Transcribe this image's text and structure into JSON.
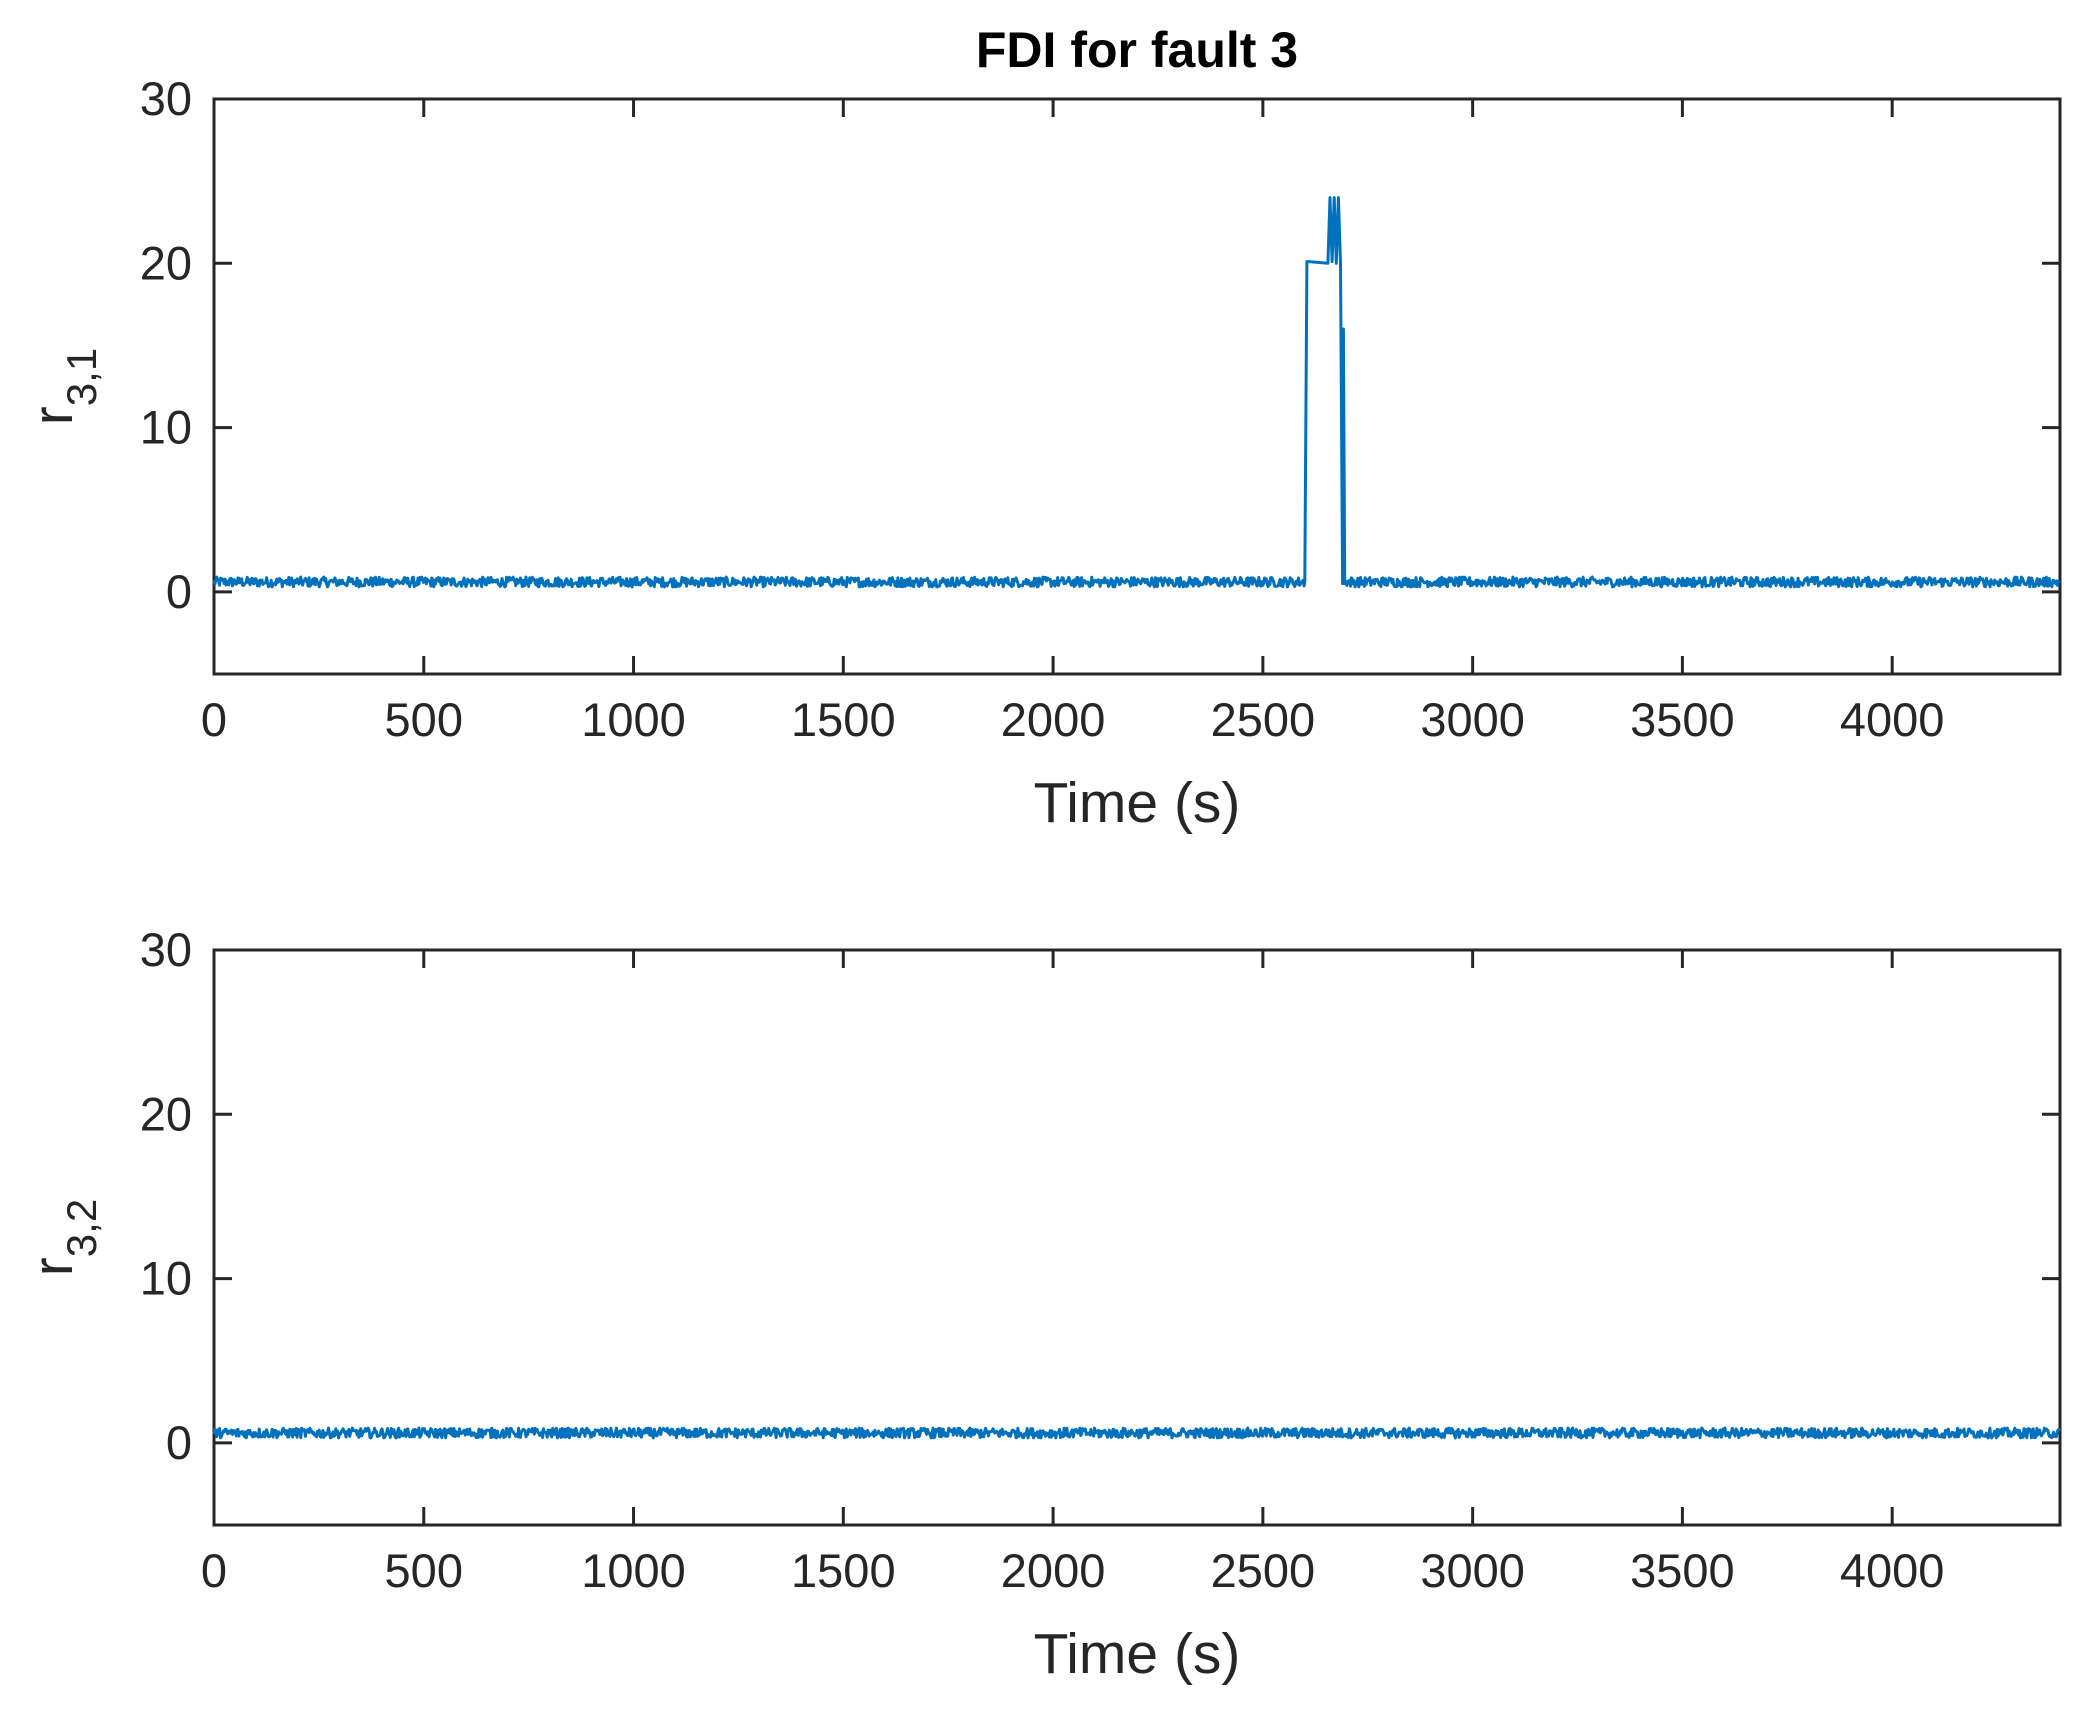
{
  "figure": {
    "title": "FDI for fault 3"
  },
  "chart_data": [
    {
      "type": "line",
      "title": "FDI for fault 3",
      "xlabel": "Time (s)",
      "ylabel": {
        "base": "r",
        "subscript": "3,1"
      },
      "xlim": [
        0,
        4400
      ],
      "ylim": [
        -5,
        30
      ],
      "xticks": [
        "0",
        "500",
        "1000",
        "1500",
        "2000",
        "2500",
        "3000",
        "3500",
        "4000"
      ],
      "yticks": [
        "0",
        "10",
        "20",
        "30"
      ],
      "grid": false,
      "series": [
        {
          "color": "#0072BD",
          "baseline": 0.6,
          "noise": 0.3,
          "x": [
            0,
            2600,
            2605,
            2610,
            2655,
            2660,
            2665,
            2670,
            2675,
            2680,
            2685,
            2690,
            2692,
            2695,
            2700,
            4400
          ],
          "y": [
            0.6,
            0.6,
            20.1,
            20.1,
            20.0,
            24.0,
            20.1,
            24.0,
            20.0,
            24.0,
            20.0,
            0.5,
            16.0,
            0.5,
            0.6,
            0.6
          ]
        }
      ]
    },
    {
      "type": "line",
      "xlabel": "Time (s)",
      "ylabel": {
        "base": "r",
        "subscript": "3,2"
      },
      "xlim": [
        0,
        4400
      ],
      "ylim": [
        -5,
        30
      ],
      "xticks": [
        "0",
        "500",
        "1000",
        "1500",
        "2000",
        "2500",
        "3000",
        "3500",
        "4000"
      ],
      "yticks": [
        "0",
        "10",
        "20",
        "30"
      ],
      "grid": false,
      "series": [
        {
          "color": "#0072BD",
          "baseline": 0.6,
          "noise": 0.3,
          "x": [
            0,
            4400
          ],
          "y": [
            0.6,
            0.6
          ]
        }
      ]
    }
  ]
}
